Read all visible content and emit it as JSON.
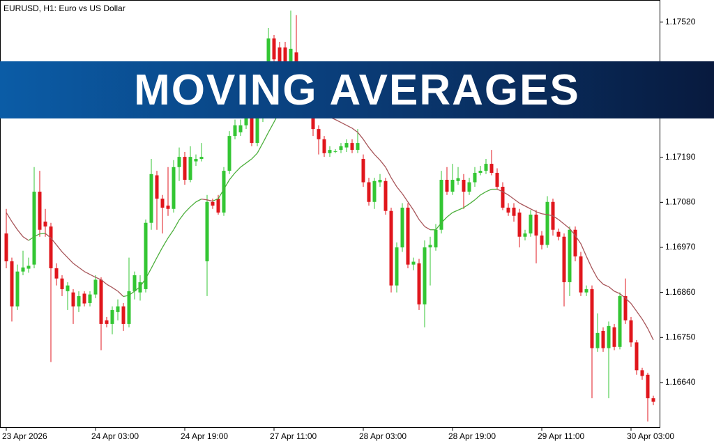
{
  "chart_data": {
    "type": "candlestick",
    "title": "EURUSD, H1:  Euro vs US Dollar",
    "annotations": [
      "MOVING AVERAGES"
    ],
    "x": [
      "23 Apr 2026",
      null,
      null,
      null,
      null,
      null,
      null,
      null,
      null,
      null,
      null,
      null,
      null,
      null,
      null,
      null,
      "24 Apr 03:00",
      null,
      null,
      null,
      null,
      null,
      null,
      null,
      null,
      null,
      null,
      null,
      null,
      null,
      null,
      null,
      "24 Apr 19:00",
      null,
      null,
      null,
      null,
      null,
      null,
      null,
      null,
      null,
      null,
      null,
      null,
      null,
      null,
      null,
      "27 Apr 11:00",
      null,
      null,
      null,
      null,
      null,
      null,
      null,
      null,
      null,
      null,
      null,
      null,
      null,
      null,
      null,
      "28 Apr 03:00",
      null,
      null,
      null,
      null,
      null,
      null,
      null,
      null,
      null,
      null,
      null,
      null,
      null,
      null,
      null,
      "28 Apr 19:00",
      null,
      null,
      null,
      null,
      null,
      null,
      null,
      null,
      null,
      null,
      null,
      null,
      null,
      null,
      null,
      "29 Apr 11:00",
      null,
      null,
      null,
      null,
      null,
      null,
      null,
      null,
      null,
      null,
      null,
      null,
      null,
      null,
      null,
      "30 Apr 03:00",
      null,
      null,
      null,
      null
    ],
    "open": [
      1.17004,
      1.16936,
      1.16826,
      1.16911,
      1.16918,
      1.16928,
      1.17106,
      1.17033,
      1.17021,
      1.16919,
      1.16894,
      1.16863,
      1.1686,
      1.16826,
      1.16857,
      1.16834,
      1.16855,
      1.16891,
      1.16792,
      1.16783,
      1.16812,
      1.16826,
      1.16783,
      1.16863,
      1.1686,
      1.16868,
      1.1703,
      1.17146,
      1.17089,
      1.17072,
      1.17064,
      1.17166,
      1.17191,
      1.17135,
      1.1718,
      1.17186,
      1.16936,
      1.17081,
      1.17089,
      1.17055,
      1.17157,
      1.17242,
      1.17251,
      1.17268,
      1.17285,
      1.17225,
      1.17285,
      1.1737,
      1.1748,
      1.17458,
      1.17458,
      1.17412,
      1.17446,
      1.17387,
      1.17336,
      1.17293,
      1.17259,
      1.17234,
      1.172,
      1.17205,
      1.17208,
      1.17214,
      1.17225,
      1.17208,
      1.17186,
      1.17129,
      1.17081,
      1.17129,
      1.17132,
      1.17059,
      1.16877,
      1.1697,
      1.17067,
      1.16928,
      1.16931,
      1.16831,
      1.1697,
      1.1697,
      1.17013,
      1.17135,
      1.17106,
      1.17132,
      1.17135,
      1.17106,
      1.17129,
      1.17152,
      1.17157,
      1.17174,
      1.17152,
      1.17118,
      1.17067,
      1.17067,
      1.17055,
      1.16996,
      1.17004,
      1.1705,
      1.16999,
      1.16976,
      1.17081,
      1.17008,
      1.16996,
      1.16885,
      1.17013,
      1.16948,
      1.1686,
      1.16868,
      1.16724,
      1.16766,
      1.16724,
      1.16775,
      1.16727,
      1.16851,
      1.16792,
      1.16738,
      1.1667,
      1.16659,
      1.16602
    ],
    "high": [
      1.17064,
      1.16945,
      1.16928,
      1.16962,
      1.16945,
      1.17166,
      1.17157,
      1.17064,
      1.1703,
      1.16931,
      1.16902,
      1.16885,
      1.16868,
      1.16863,
      1.16863,
      1.16863,
      1.16902,
      1.16897,
      1.168,
      1.16826,
      1.16843,
      1.16834,
      1.16945,
      1.16911,
      1.16902,
      1.17038,
      1.17186,
      1.17157,
      1.17098,
      1.17166,
      1.17183,
      1.17214,
      1.17203,
      1.17217,
      1.17197,
      1.17225,
      1.17098,
      1.17089,
      1.17098,
      1.17166,
      1.17254,
      1.17282,
      1.17282,
      1.17305,
      1.17299,
      1.17299,
      1.17387,
      1.17506,
      1.17489,
      1.17472,
      1.17472,
      1.17548,
      1.17537,
      1.17395,
      1.17344,
      1.17302,
      1.17268,
      1.17242,
      1.17217,
      1.1721,
      1.17225,
      1.17234,
      1.17234,
      1.17259,
      1.17197,
      1.1714,
      1.1714,
      1.17149,
      1.1714,
      1.17067,
      1.16982,
      1.17078,
      1.17078,
      1.16945,
      1.16942,
      1.16987,
      1.16996,
      1.17027,
      1.17157,
      1.17166,
      1.17174,
      1.17166,
      1.17149,
      1.1714,
      1.17166,
      1.17169,
      1.17186,
      1.17208,
      1.17163,
      1.17129,
      1.17078,
      1.17078,
      1.17064,
      1.17013,
      1.17061,
      1.17061,
      1.1701,
      1.17095,
      1.17089,
      1.17016,
      1.17004,
      1.17021,
      1.17021,
      1.16959,
      1.16877,
      1.16877,
      1.16809,
      1.16775,
      1.16789,
      1.16783,
      1.1686,
      1.16894,
      1.168,
      1.16744,
      1.16676,
      1.16664,
      1.16608
    ],
    "low": [
      1.16919,
      1.16789,
      1.16817,
      1.16902,
      1.16908,
      1.16919,
      1.16996,
      1.16996,
      1.1669,
      1.16877,
      1.16851,
      1.16817,
      1.16783,
      1.16812,
      1.16826,
      1.16826,
      1.16846,
      1.16719,
      1.16775,
      1.16758,
      1.16792,
      1.16766,
      1.16775,
      1.16843,
      1.1684,
      1.1686,
      1.17013,
      1.17013,
      1.17004,
      1.17047,
      1.17055,
      1.17132,
      1.17123,
      1.17129,
      1.17169,
      1.1718,
      1.16851,
      1.17064,
      1.1705,
      1.17047,
      1.17149,
      1.17234,
      1.17242,
      1.17259,
      1.17217,
      1.17217,
      1.17276,
      1.17361,
      1.17418,
      1.17404,
      1.17404,
      1.17404,
      1.17378,
      1.17327,
      1.17285,
      1.17242,
      1.17197,
      1.17191,
      1.17191,
      1.172,
      1.172,
      1.17203,
      1.172,
      1.172,
      1.17118,
      1.17072,
      1.17064,
      1.17118,
      1.1705,
      1.1686,
      1.1686,
      1.16959,
      1.16919,
      1.16914,
      1.16817,
      1.16775,
      1.16877,
      1.16962,
      1.17004,
      1.17098,
      1.17098,
      1.17123,
      1.17064,
      1.17098,
      1.17118,
      1.17146,
      1.17149,
      1.17146,
      1.17112,
      1.17061,
      1.17047,
      1.17033,
      1.1697,
      1.16987,
      1.16996,
      1.16931,
      1.16965,
      1.16969,
      1.16999,
      1.16987,
      1.16826,
      1.16851,
      1.16936,
      1.16851,
      1.16851,
      1.16602,
      1.16715,
      1.16715,
      1.16602,
      1.16719,
      1.16721,
      1.16783,
      1.16727,
      1.16659,
      1.16647,
      1.16545,
      1.16585
    ],
    "close": [
      1.16936,
      1.16826,
      1.16911,
      1.16921,
      1.16925,
      1.17106,
      1.17013,
      1.17021,
      1.16919,
      1.16894,
      1.16868,
      1.16877,
      1.16826,
      1.16851,
      1.16833,
      1.16855,
      1.16891,
      1.16783,
      1.16783,
      1.16817,
      1.16826,
      1.16783,
      1.16863,
      1.16902,
      1.16885,
      1.1703,
      1.17149,
      1.17089,
      1.17067,
      1.17064,
      1.17166,
      1.17191,
      1.17135,
      1.17191,
      1.17186,
      1.17191,
      1.17081,
      1.17072,
      1.17055,
      1.17157,
      1.17242,
      1.17268,
      1.17268,
      1.17293,
      1.17225,
      1.17285,
      1.1737,
      1.1748,
      1.17429,
      1.17412,
      1.17412,
      1.17455,
      1.17387,
      1.17336,
      1.17293,
      1.17259,
      1.17234,
      1.172,
      1.17208,
      1.17205,
      1.17217,
      1.17225,
      1.17208,
      1.17225,
      1.17129,
      1.17081,
      1.17132,
      1.17135,
      1.17059,
      1.16877,
      1.1697,
      1.17067,
      1.16928,
      1.16935,
      1.16831,
      1.1697,
      1.16976,
      1.17013,
      1.17135,
      1.17106,
      1.17135,
      1.17139,
      1.17106,
      1.17129,
      1.17152,
      1.17157,
      1.17174,
      1.17152,
      1.17118,
      1.17067,
      1.17055,
      1.17047,
      1.16996,
      1.17004,
      1.1705,
      1.16999,
      1.16976,
      1.17081,
      1.17013,
      1.16996,
      1.16885,
      1.17013,
      1.16948,
      1.1686,
      1.16868,
      1.16724,
      1.16761,
      1.16724,
      1.16778,
      1.16727,
      1.16851,
      1.16792,
      1.16738,
      1.1667,
      1.16656,
      1.16602,
      1.16593
    ],
    "up_color": "#33c633",
    "down_color": "#e0161c",
    "overlays": [
      {
        "type": "line",
        "rising_color": "#4caf3c",
        "falling_color": "#a8565a",
        "values": [
          1.17055,
          1.17033,
          1.17013,
          1.16996,
          1.16987,
          1.16996,
          1.17003,
          1.17004,
          1.16993,
          1.16976,
          1.16959,
          1.16945,
          1.16931,
          1.16921,
          1.16911,
          1.16904,
          1.16897,
          1.16891,
          1.1688,
          1.16872,
          1.16863,
          1.1685,
          1.16853,
          1.16863,
          1.16874,
          1.16894,
          1.16919,
          1.16945,
          1.1697,
          1.16993,
          1.17013,
          1.17037,
          1.17055,
          1.17069,
          1.17081,
          1.17088,
          1.17086,
          1.17083,
          1.17089,
          1.17112,
          1.17135,
          1.17152,
          1.17166,
          1.17176,
          1.17186,
          1.172,
          1.17225,
          1.17251,
          1.17276,
          1.17302,
          1.17322,
          1.17339,
          1.1735,
          1.1735,
          1.17336,
          1.17319,
          1.17305,
          1.17295,
          1.17288,
          1.17282,
          1.17275,
          1.17268,
          1.17261,
          1.17251,
          1.17234,
          1.17214,
          1.17197,
          1.17183,
          1.17166,
          1.1714,
          1.17118,
          1.17101,
          1.17081,
          1.17061,
          1.17038,
          1.17021,
          1.17013,
          1.17013,
          1.1703,
          1.17044,
          1.17055,
          1.17061,
          1.17067,
          1.17076,
          1.17086,
          1.17098,
          1.17106,
          1.17112,
          1.17112,
          1.17106,
          1.17098,
          1.17088,
          1.17078,
          1.17071,
          1.17064,
          1.17057,
          1.17052,
          1.1705,
          1.17047,
          1.17038,
          1.17027,
          1.17016,
          1.16999,
          1.16979,
          1.16948,
          1.16919,
          1.16894,
          1.1688,
          1.16874,
          1.16863,
          1.16857,
          1.16846,
          1.16833,
          1.16814,
          1.16795,
          1.16772,
          1.16744
        ]
      }
    ],
    "ylim": [
      1.16531,
      1.17574
    ],
    "yticks": [
      {
        "value": 1.1752,
        "label": "1.17520"
      },
      {
        "value": 1.1719,
        "label": "1.17190"
      },
      {
        "value": 1.1708,
        "label": "1.17080"
      },
      {
        "value": 1.1697,
        "label": "1.16970"
      },
      {
        "value": 1.1686,
        "label": "1.16860"
      },
      {
        "value": 1.1675,
        "label": "1.16750"
      },
      {
        "value": 1.1664,
        "label": "1.16640"
      }
    ],
    "grid": false
  }
}
